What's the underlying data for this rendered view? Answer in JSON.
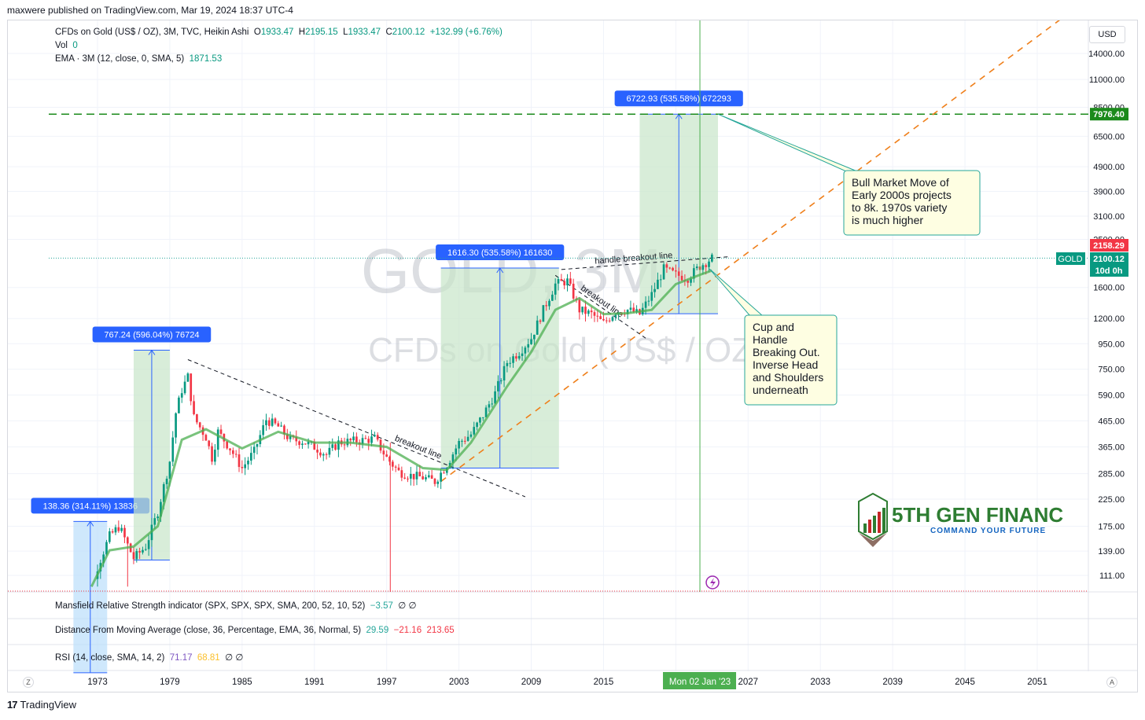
{
  "header": {
    "publisher": "maxwere published on TradingView.com, Mar 19, 2024 18:37 UTC-4"
  },
  "legend": {
    "symbol": "CFDs on Gold (US$ / OZ), 3M, TVC, Heikin Ashi",
    "open_label": "O",
    "open": "1933.47",
    "high_label": "H",
    "high": "2195.15",
    "low_label": "L",
    "low": "1933.47",
    "close_label": "C",
    "close": "2100.12",
    "change": "+132.99 (+6.76%)",
    "vol_label": "Vol",
    "vol": "0",
    "ema_label": "EMA · 3M (12, close, 0, SMA, 5)",
    "ema": "1871.53"
  },
  "watermark": {
    "symbol": "GOLD, 3M",
    "description": "CFDs on Gold (US$ / OZ)"
  },
  "currency_button": "USD",
  "panes": {
    "mansfield": {
      "label": "Mansfield Relative Strength indicator (SPX, SPX, SPX, SMA, 200, 52, 10, 52)",
      "v1": "−3.57",
      "v2": "∅",
      "v3": "∅"
    },
    "distance": {
      "label": "Distance From Moving Average (close, 36, Percentage, EMA, 36, Normal, 5)",
      "v1": "29.59",
      "v2": "−21.16",
      "v3": "213.65"
    },
    "rsi": {
      "label": "RSI (14, close, SMA, 14, 2)",
      "v1": "71.17",
      "v2": "68.81",
      "v3": "∅",
      "v4": "∅"
    }
  },
  "axis_buttons": {
    "left": "Z",
    "right": "A"
  },
  "footer": {
    "brand": "TradingView",
    "mark": "17"
  },
  "logo": {
    "name": "5TH GEN FINANC",
    "tagline": "COMMAND YOUR FUTURE"
  },
  "colors": {
    "up": "#089981",
    "down": "#f23645",
    "ema": "#4caf50",
    "measure_fill": "#c8e6c9",
    "measure_fill_blue": "#bbdefb",
    "measure_label": "#2962ff",
    "target_line": "#1b8a1b",
    "trend_line": "#ef7f1a",
    "price_line": "#26a69a",
    "cursor_line": "#4caf50",
    "note_bg": "#fefee2"
  },
  "chart_data": {
    "type": "candlestick",
    "title": "CFDs on Gold (US$ / OZ)",
    "interval": "3M",
    "y_scale": "log",
    "ylim": [
      95,
      23000
    ],
    "xlim": [
      1970,
      2058
    ],
    "price_ticks": [
      "14000.00",
      "11000.00",
      "8500.00",
      "6500.00",
      "4900.00",
      "3900.00",
      "3100.00",
      "2500.00",
      "1600.00",
      "1200.00",
      "950.00",
      "750.00",
      "590.00",
      "465.00",
      "365.00",
      "285.00",
      "225.00",
      "175.00",
      "139.00",
      "111.00"
    ],
    "price_tick_values": [
      14000,
      11000,
      8500,
      6500,
      4900,
      3900,
      3100,
      2500,
      1600,
      1200,
      950,
      750,
      590,
      465,
      365,
      285,
      225,
      175,
      139,
      111
    ],
    "time_ticks": [
      "1973",
      "1979",
      "1985",
      "1991",
      "1997",
      "2003",
      "2009",
      "2015",
      "2021",
      "2027",
      "2033",
      "2039",
      "2045",
      "2051"
    ],
    "time_tick_values": [
      1973,
      1979,
      1985,
      1991,
      1997,
      2003,
      2009,
      2015,
      2021,
      2027,
      2033,
      2039,
      2045,
      2051
    ],
    "price_path": [
      [
        1971,
        40
      ],
      [
        1972.5,
        95
      ],
      [
        1973,
        120
      ],
      [
        1974,
        160
      ],
      [
        1974.8,
        175
      ],
      [
        1976,
        130
      ],
      [
        1977,
        145
      ],
      [
        1978,
        200
      ],
      [
        1979,
        320
      ],
      [
        1979.5,
        500
      ],
      [
        1980,
        620
      ],
      [
        1980.5,
        700
      ],
      [
        1981,
        480
      ],
      [
        1982,
        400
      ],
      [
        1982.5,
        330
      ],
      [
        1983,
        420
      ],
      [
        1984,
        360
      ],
      [
        1985,
        300
      ],
      [
        1986,
        350
      ],
      [
        1987,
        470
      ],
      [
        1988,
        440
      ],
      [
        1989,
        390
      ],
      [
        1990,
        385
      ],
      [
        1991,
        365
      ],
      [
        1992,
        340
      ],
      [
        1993,
        380
      ],
      [
        1994,
        385
      ],
      [
        1995,
        388
      ],
      [
        1996,
        395
      ],
      [
        1997,
        330
      ],
      [
        1998,
        290
      ],
      [
        1999,
        280
      ],
      [
        2000,
        275
      ],
      [
        2001,
        265
      ],
      [
        2002,
        310
      ],
      [
        2003,
        380
      ],
      [
        2004,
        410
      ],
      [
        2005,
        490
      ],
      [
        2006,
        600
      ],
      [
        2007,
        800
      ],
      [
        2008,
        880
      ],
      [
        2009,
        1000
      ],
      [
        2010,
        1300
      ],
      [
        2011,
        1650
      ],
      [
        2012,
        1700
      ],
      [
        2013,
        1300
      ],
      [
        2014,
        1250
      ],
      [
        2015,
        1150
      ],
      [
        2016,
        1280
      ],
      [
        2017,
        1300
      ],
      [
        2018,
        1250
      ],
      [
        2019,
        1500
      ],
      [
        2020,
        1900
      ],
      [
        2021,
        1800
      ],
      [
        2022,
        1750
      ],
      [
        2023,
        1950
      ],
      [
        2024,
        2100
      ]
    ],
    "ema_path": [
      [
        1972.5,
        100
      ],
      [
        1974,
        140
      ],
      [
        1976,
        145
      ],
      [
        1978,
        175
      ],
      [
        1980,
        390
      ],
      [
        1982,
        430
      ],
      [
        1985,
        360
      ],
      [
        1988,
        420
      ],
      [
        1991,
        380
      ],
      [
        1994,
        380
      ],
      [
        1997,
        365
      ],
      [
        2000,
        300
      ],
      [
        2002,
        295
      ],
      [
        2004,
        380
      ],
      [
        2007,
        640
      ],
      [
        2009,
        880
      ],
      [
        2011,
        1300
      ],
      [
        2013,
        1450
      ],
      [
        2015,
        1250
      ],
      [
        2017,
        1260
      ],
      [
        2019,
        1300
      ],
      [
        2021,
        1650
      ],
      [
        2023,
        1800
      ],
      [
        2024,
        1871.53
      ]
    ],
    "current_price": {
      "label": "GOLD",
      "value": "2100.12",
      "countdown": "10d 0h"
    },
    "high_marker": "2158.29",
    "target": {
      "value": 7976.4,
      "label": "7976.40"
    },
    "cursor": {
      "date": "Mon 02 Jan '23",
      "x": 2023
    },
    "measurements": [
      {
        "label": "138.36 (314.11%) 13836",
        "x0": 1971.0,
        "x1": 1973.8,
        "y0": 45,
        "y1": 183,
        "color": "blue"
      },
      {
        "label": "767.24 (596.04%) 76724",
        "x0": 1976.0,
        "x1": 1979.0,
        "y0": 128,
        "y1": 895,
        "color": "green"
      },
      {
        "label": "1616.30 (535.58%) 161630",
        "x0": 2001.5,
        "x1": 2011.3,
        "y0": 300,
        "y1": 1916,
        "color": "green"
      },
      {
        "label": "6722.93 (535.58%) 672293",
        "x0": 2018.0,
        "x1": 2024.5,
        "y0": 1255,
        "y1": 7976,
        "color": "green"
      }
    ],
    "trendlines": [
      {
        "label": "breakout line",
        "x0": 1980.5,
        "y0": 820,
        "x1": 2008.5,
        "y1": 230
      },
      {
        "label": "breakout line",
        "x0": 2011.0,
        "y0": 1790,
        "x1": 2018.5,
        "y1": 1000
      },
      {
        "label": "handle breakout line",
        "x0": 2011.5,
        "y0": 1890,
        "x1": 2025.5,
        "y1": 2130
      }
    ],
    "support_trend": {
      "x0": 2001.5,
      "y0": 265,
      "x1": 2054,
      "y1": 21000
    },
    "annotations": [
      {
        "text": [
          "Bull Market Move of",
          "Early 2000s projects",
          "to 8k.  1970s variety",
          "is much higher"
        ]
      },
      {
        "text": [
          "Cup and",
          "Handle",
          "Breaking Out.",
          "Inverse Head",
          "and Shoulders",
          "underneath"
        ]
      }
    ]
  }
}
